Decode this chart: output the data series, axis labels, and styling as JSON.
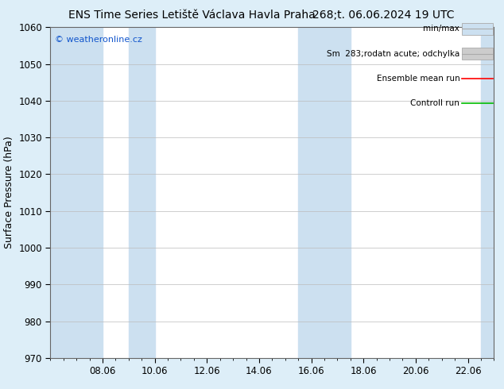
{
  "title_left": "ENS Time Series Letiště Václava Havla Praha",
  "title_right": "268;t. 06.06.2024 19 UTC",
  "ylabel": "Surface Pressure (hPa)",
  "ylim": [
    970,
    1060
  ],
  "yticks": [
    970,
    980,
    990,
    1000,
    1010,
    1020,
    1030,
    1040,
    1050,
    1060
  ],
  "x_tick_labels": [
    "08.06",
    "10.06",
    "12.06",
    "14.06",
    "16.06",
    "18.06",
    "20.06",
    "22.06"
  ],
  "x_tick_positions": [
    2,
    4,
    6,
    8,
    10,
    12,
    14,
    16
  ],
  "xlim": [
    0,
    17
  ],
  "shaded_bands": [
    {
      "x_start": 0,
      "x_end": 2
    },
    {
      "x_start": 3.0,
      "x_end": 4.0
    },
    {
      "x_start": 9.5,
      "x_end": 11.5
    },
    {
      "x_start": 16.5,
      "x_end": 17
    }
  ],
  "band_color": "#cce0f0",
  "bg_color": "#ddeef8",
  "plot_bg": "#ffffff",
  "legend_entries": [
    {
      "label": "min/max",
      "type": "fill",
      "facecolor": "#cce0f0",
      "edgecolor": "#aaaaaa"
    },
    {
      "label": "Sm  283;rodatn acute; odchylka",
      "type": "fill",
      "facecolor": "#cccccc",
      "edgecolor": "#aaaaaa"
    },
    {
      "label": "Ensemble mean run",
      "type": "line",
      "color": "#ff0000"
    },
    {
      "label": "Controll run",
      "type": "line",
      "color": "#00bb00"
    }
  ],
  "watermark": "© weatheronline.cz",
  "watermark_color": "#1155cc",
  "title_fontsize": 10,
  "ylabel_fontsize": 9,
  "tick_fontsize": 8.5,
  "legend_fontsize": 7.5,
  "watermark_fontsize": 8,
  "grid_color": "#bbbbbb",
  "spine_color": "#666666"
}
